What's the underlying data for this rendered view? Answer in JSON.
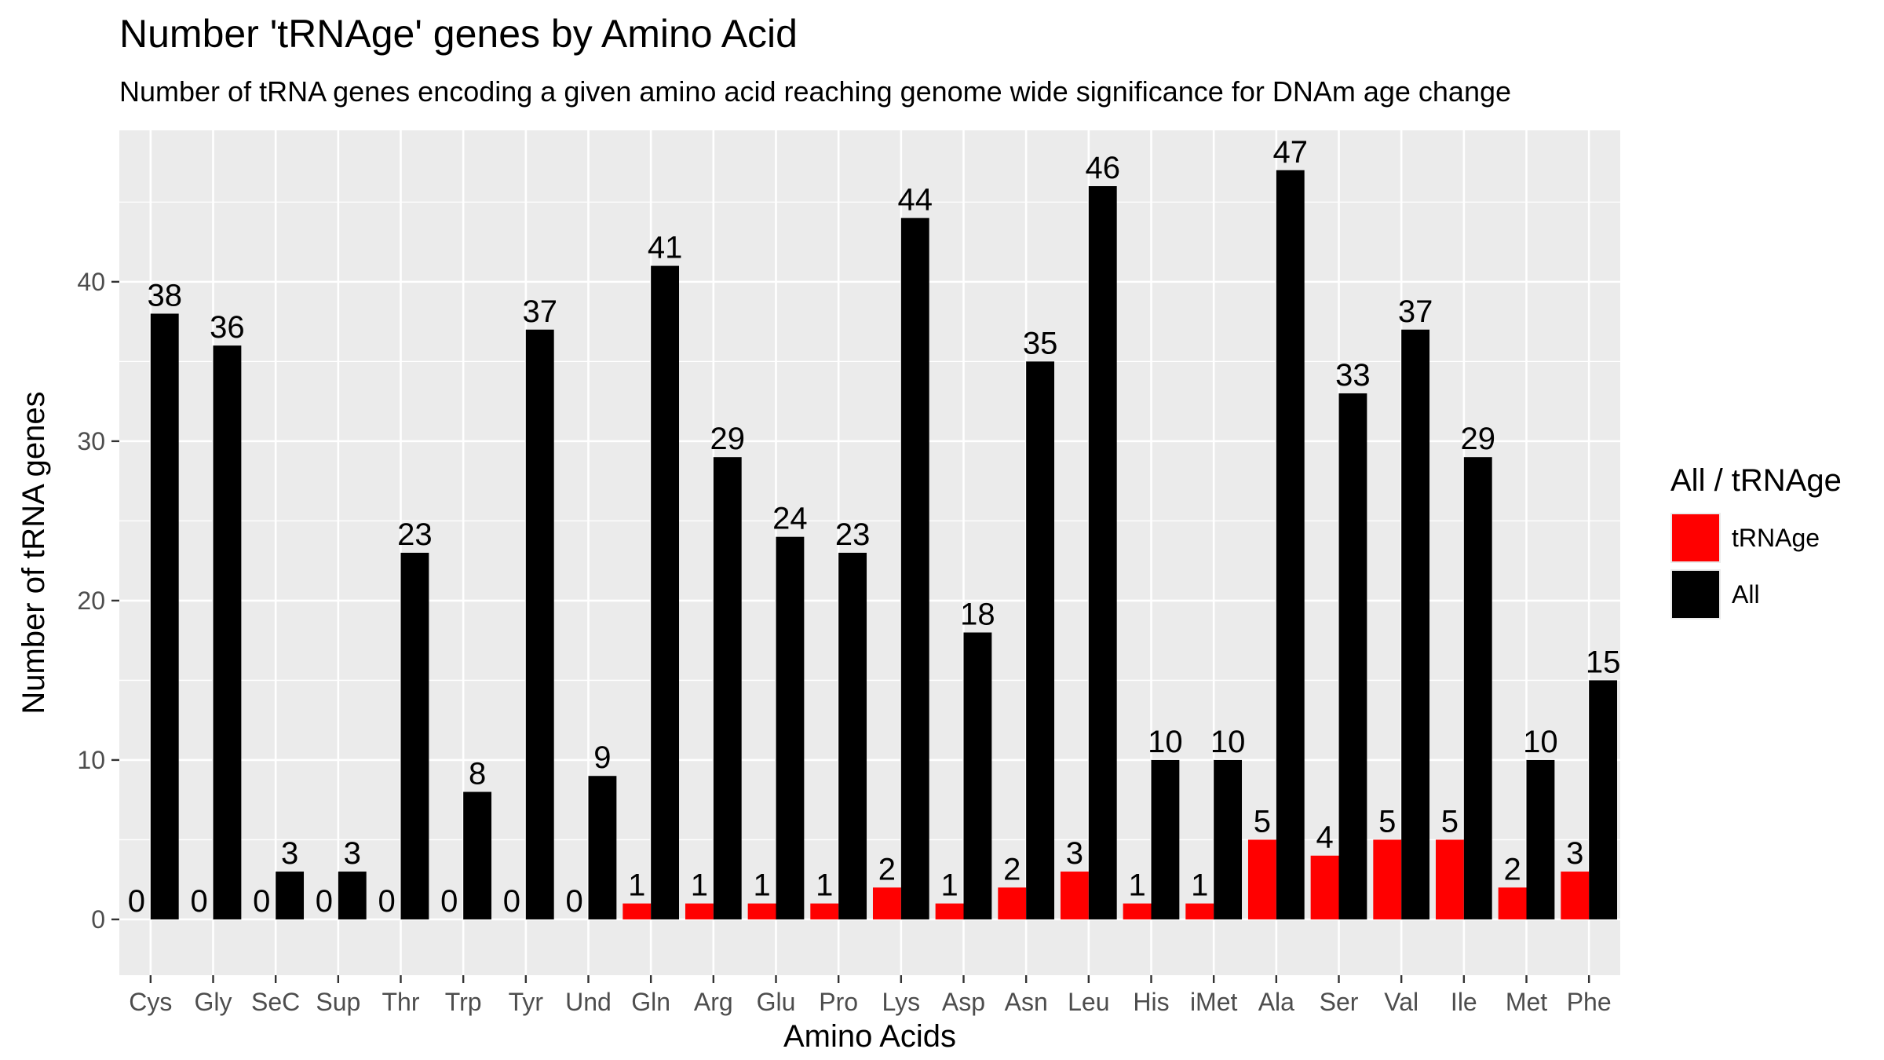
{
  "chart_data": {
    "type": "bar",
    "title": "Number 'tRNAge' genes by Amino Acid",
    "subtitle": "Number of tRNA genes encoding a given amino acid reaching genome wide significance for DNAm age change",
    "xlabel": "Amino Acids",
    "ylabel": "Number of tRNA genes",
    "ylim": [
      -3.5,
      49.5
    ],
    "yticks": [
      0,
      10,
      20,
      30,
      40
    ],
    "grid": true,
    "legend_position": "right",
    "legend_title": "All / tRNAge",
    "categories": [
      "Cys",
      "Gly",
      "SeC",
      "Sup",
      "Thr",
      "Trp",
      "Tyr",
      "Und",
      "Gln",
      "Arg",
      "Glu",
      "Pro",
      "Lys",
      "Asp",
      "Asn",
      "Leu",
      "His",
      "iMet",
      "Ala",
      "Ser",
      "Val",
      "Ile",
      "Met",
      "Phe"
    ],
    "series": [
      {
        "name": "tRNAge",
        "color": "#ff0000",
        "values": [
          0,
          0,
          0,
          0,
          0,
          0,
          0,
          0,
          1,
          1,
          1,
          1,
          2,
          1,
          2,
          3,
          1,
          1,
          5,
          4,
          5,
          5,
          2,
          3
        ]
      },
      {
        "name": "All",
        "color": "#000000",
        "values": [
          38,
          36,
          3,
          3,
          23,
          8,
          37,
          9,
          41,
          29,
          24,
          23,
          44,
          18,
          35,
          46,
          10,
          10,
          47,
          33,
          37,
          29,
          10,
          15
        ]
      }
    ]
  }
}
